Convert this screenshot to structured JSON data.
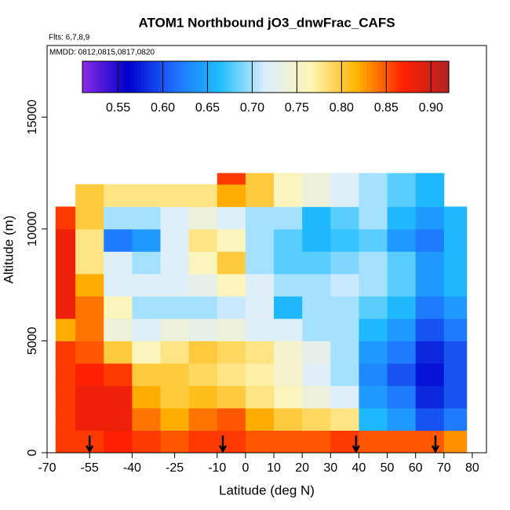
{
  "chart_data": {
    "type": "heatmap",
    "title": "ATOM1 Northbound jO3_dnwFrac_CAFS",
    "subtitle": "Flts: 6,7,8,9",
    "annotation": "MMDD: 0812,0815,0817,0820",
    "xlabel": "Latitude (deg N)",
    "ylabel": "Altitude (m)",
    "xlim": [
      -70,
      85
    ],
    "ylim": [
      0,
      18200
    ],
    "xticks": [
      -70,
      -55,
      -40,
      -25,
      -10,
      0,
      10,
      20,
      30,
      40,
      50,
      60,
      70,
      80
    ],
    "yticks": [
      0,
      5000,
      10000,
      15000
    ],
    "x_edges": [
      -67,
      -60,
      -50,
      -40,
      -30,
      -20,
      -10,
      0,
      10,
      20,
      30,
      40,
      50,
      60,
      70,
      78
    ],
    "y_edges": [
      0,
      1000,
      2000,
      3000,
      4000,
      5000,
      6000,
      7000,
      8000,
      9000,
      10000,
      11000,
      12000,
      12500
    ],
    "z": [
      [
        0.86,
        0.86,
        0.87,
        0.86,
        0.85,
        0.86,
        0.86,
        0.85,
        0.85,
        0.85,
        0.86,
        0.85,
        0.85,
        0.85,
        0.83
      ],
      [
        0.86,
        0.88,
        0.88,
        0.84,
        0.82,
        0.84,
        0.85,
        0.82,
        0.8,
        0.79,
        0.78,
        0.66,
        0.64,
        0.6,
        0.62
      ],
      [
        0.86,
        0.88,
        0.88,
        0.82,
        0.8,
        0.81,
        0.8,
        0.78,
        0.76,
        0.74,
        0.72,
        0.64,
        0.62,
        0.58,
        0.6
      ],
      [
        0.86,
        0.87,
        0.86,
        0.8,
        0.8,
        0.79,
        0.78,
        0.77,
        0.75,
        0.72,
        0.7,
        0.63,
        0.6,
        0.57,
        0.6
      ],
      [
        0.86,
        0.85,
        0.8,
        0.76,
        0.78,
        0.8,
        0.79,
        0.78,
        0.75,
        0.73,
        0.7,
        0.64,
        0.62,
        0.58,
        0.6
      ],
      [
        0.82,
        0.84,
        0.74,
        0.72,
        0.74,
        0.73,
        0.74,
        0.72,
        0.72,
        0.7,
        0.7,
        0.66,
        0.64,
        0.6,
        0.62
      ],
      [
        0.88,
        0.84,
        0.76,
        0.7,
        0.7,
        0.7,
        0.71,
        0.72,
        0.66,
        0.7,
        0.7,
        0.68,
        0.66,
        0.62,
        0.64
      ],
      [
        0.88,
        0.82,
        0.72,
        0.72,
        0.72,
        0.73,
        0.76,
        0.72,
        0.7,
        0.7,
        0.71,
        0.7,
        0.68,
        0.64,
        0.66
      ],
      [
        0.88,
        0.78,
        0.72,
        0.7,
        0.72,
        0.76,
        0.8,
        0.7,
        0.68,
        0.68,
        0.69,
        0.7,
        0.68,
        0.64,
        0.66
      ],
      [
        0.88,
        0.78,
        0.62,
        0.64,
        0.72,
        0.78,
        0.76,
        0.7,
        0.68,
        0.66,
        0.67,
        0.68,
        0.64,
        0.62,
        0.66
      ],
      [
        0.86,
        0.8,
        0.7,
        0.7,
        0.72,
        0.74,
        0.72,
        0.7,
        0.7,
        0.66,
        0.68,
        0.7,
        0.66,
        0.64,
        0.66
      ],
      [
        null,
        0.8,
        0.78,
        0.78,
        0.78,
        0.78,
        0.82,
        0.8,
        0.76,
        0.74,
        0.72,
        0.7,
        0.68,
        0.66,
        null
      ],
      [
        null,
        null,
        null,
        null,
        null,
        null,
        0.86,
        0.8,
        0.76,
        0.74,
        0.72,
        0.7,
        0.68,
        0.66,
        null
      ]
    ],
    "zlim": [
      0.51,
      0.92
    ],
    "zticks": [
      0.55,
      {
        "value": 0.6,
        "label": "0.60"
      },
      0.65,
      {
        "value": 0.7,
        "label": "0.70"
      },
      0.75,
      {
        "value": 0.8,
        "label": "0.80"
      },
      0.85,
      {
        "value": 0.9,
        "label": "0.90"
      }
    ],
    "colors": [
      "#8a2be2",
      "#0000cd",
      "#1e6eff",
      "#1ebeff",
      "#dceeff",
      "#fff5b4",
      "#ffb400",
      "#ff2000",
      "#b22222"
    ],
    "arrows_x": [
      -55,
      -8,
      39,
      67
    ]
  }
}
